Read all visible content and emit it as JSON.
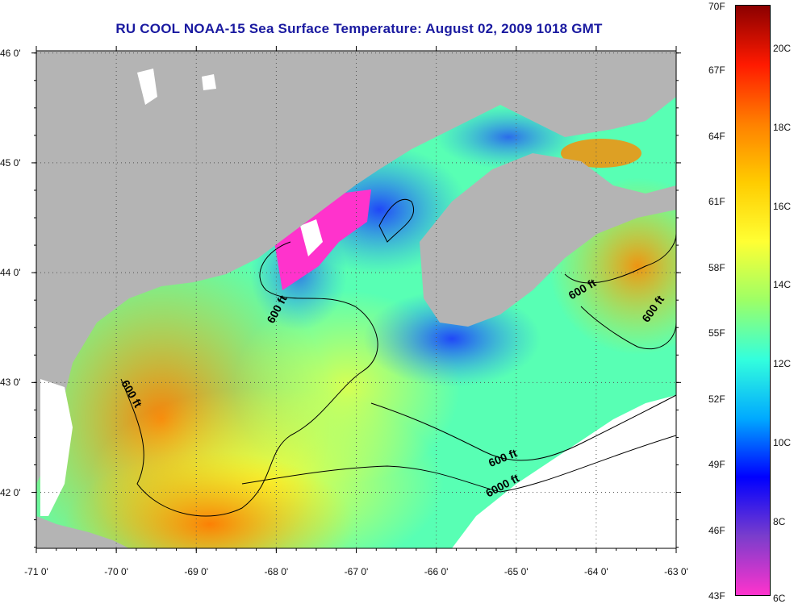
{
  "title": "RU COOL  NOAA-15  Sea Surface Temperature:  August 02, 2009 1018 GMT",
  "x_axis": {
    "ticks": [
      {
        "value": -71,
        "label": "-71 0'"
      },
      {
        "value": -70,
        "label": "-70 0'"
      },
      {
        "value": -69,
        "label": "-69 0'"
      },
      {
        "value": -68,
        "label": "-68 0'"
      },
      {
        "value": -67,
        "label": "-67 0'"
      },
      {
        "value": -66,
        "label": "-66 0'"
      },
      {
        "value": -65,
        "label": "-65 0'"
      },
      {
        "value": -64,
        "label": "-64 0'"
      },
      {
        "value": -63,
        "label": "-63 0'"
      }
    ]
  },
  "y_axis": {
    "ticks": [
      {
        "value": 46,
        "label": "46 0'"
      },
      {
        "value": 45,
        "label": "45 0'"
      },
      {
        "value": 44,
        "label": "44 0'"
      },
      {
        "value": 43,
        "label": "43 0'"
      },
      {
        "value": 42,
        "label": "42 0'"
      }
    ]
  },
  "colorbar": {
    "fahrenheit": [
      "70F",
      "67F",
      "64F",
      "61F",
      "58F",
      "55F",
      "52F",
      "49F",
      "46F",
      "43F"
    ],
    "celsius": [
      "20C",
      "18C",
      "16C",
      "14C",
      "12C",
      "10C",
      "8C",
      "6C"
    ],
    "colors": [
      "#8b0000",
      "#ff1a00",
      "#ff8000",
      "#ffcc00",
      "#ffff33",
      "#9dff66",
      "#33ffdd",
      "#00aaff",
      "#0000ff",
      "#7a3dcc",
      "#ff33cc"
    ]
  },
  "contour_labels": [
    {
      "text": "600 ft",
      "lon": -67.95,
      "lat": 43.65,
      "angle": -62
    },
    {
      "text": "600 ft",
      "lon": -69.85,
      "lat": 42.88,
      "angle": 60
    },
    {
      "text": "600 ft",
      "lon": -64.15,
      "lat": 43.82,
      "angle": -30
    },
    {
      "text": "600 ft",
      "lon": -63.25,
      "lat": 43.65,
      "angle": -55
    },
    {
      "text": "600 ft",
      "lon": -65.15,
      "lat": 42.28,
      "angle": -22
    },
    {
      "text": "6000 ft",
      "lon": -65.15,
      "lat": 42.03,
      "angle": -28
    }
  ],
  "colors": {
    "land": "#b4b4b4",
    "cloud": "#ffffff",
    "title": "#1a1aa0"
  }
}
